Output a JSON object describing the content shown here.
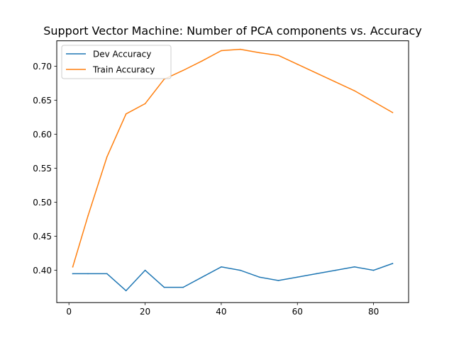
{
  "chart_data": {
    "type": "line",
    "title": "Support Vector Machine: Number of PCA components vs. Accuracy",
    "xlabel": "",
    "ylabel": "",
    "xlim": [
      -3.2,
      89.2
    ],
    "ylim": [
      0.3525,
      0.7375
    ],
    "x_ticks": [
      0,
      20,
      40,
      60,
      80
    ],
    "x_tick_labels": [
      "0",
      "20",
      "40",
      "60",
      "80"
    ],
    "y_ticks": [
      0.4,
      0.45,
      0.5,
      0.55,
      0.6,
      0.65,
      0.7
    ],
    "y_tick_labels": [
      "0.40",
      "0.45",
      "0.50",
      "0.55",
      "0.60",
      "0.65",
      "0.70"
    ],
    "grid": false,
    "legend_position": "upper left",
    "series": [
      {
        "name": "Dev Accuracy",
        "color": "#1f77b4",
        "x": [
          1,
          5,
          10,
          15,
          20,
          25,
          30,
          35,
          40,
          45,
          50,
          55,
          60,
          65,
          70,
          75,
          80,
          85
        ],
        "y": [
          0.395,
          0.395,
          0.395,
          0.37,
          0.4,
          0.375,
          0.375,
          0.39,
          0.405,
          0.4,
          0.39,
          0.385,
          0.39,
          0.395,
          0.4,
          0.405,
          0.4,
          0.41
        ]
      },
      {
        "name": "Train Accuracy",
        "color": "#ff7f0e",
        "x": [
          1,
          5,
          10,
          15,
          20,
          25,
          30,
          35,
          40,
          45,
          50,
          55,
          60,
          65,
          70,
          75,
          80,
          85
        ],
        "y": [
          0.405,
          0.48,
          0.567,
          0.63,
          0.645,
          0.681,
          0.694,
          0.708,
          0.723,
          0.725,
          0.72,
          0.716,
          0.703,
          0.69,
          0.677,
          0.664,
          0.648,
          0.632
        ]
      }
    ]
  }
}
